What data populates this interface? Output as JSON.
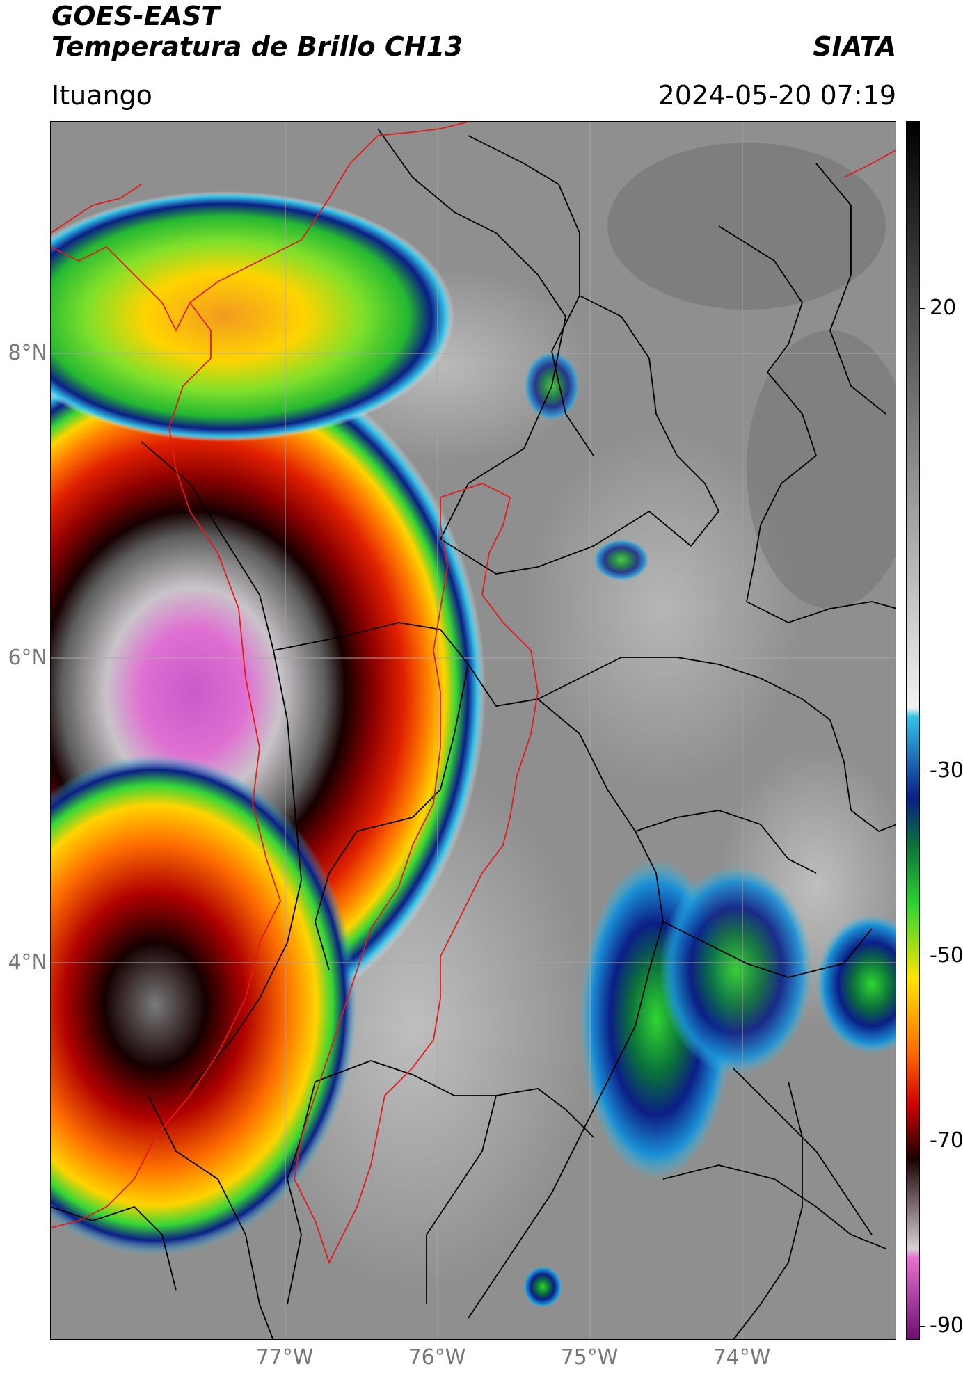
{
  "header": {
    "title_line1": "GOES-EAST",
    "title_line2": "Temperatura de Brillo CH13",
    "brand": "SIATA",
    "location": "Ituango",
    "datetime": "2024-05-20 07:19"
  },
  "map": {
    "lat_labels": [
      "8°N",
      "6°N",
      "4°N"
    ],
    "lon_labels": [
      "77°W",
      "76°W",
      "75°W",
      "74°W"
    ],
    "colors": {
      "land_gray": "#8c8c8c",
      "border_black": "#000000",
      "region_red": "#e21a1a",
      "gridline": "#a0a0a0"
    }
  },
  "colorbar": {
    "tick_labels": [
      "20",
      "-30",
      "-50",
      "-70",
      "-90"
    ],
    "stops": [
      {
        "value": "45",
        "color": "#000000"
      },
      {
        "value": "20",
        "color": "#5a5a5a"
      },
      {
        "value": "-20",
        "color": "#f2f2f2"
      },
      {
        "value": "-21",
        "color": "#33c3e8"
      },
      {
        "value": "-30",
        "color": "#0b1e86"
      },
      {
        "value": "-35",
        "color": "#0a6e3c"
      },
      {
        "value": "-42",
        "color": "#2fd62f"
      },
      {
        "value": "-50",
        "color": "#ffe500"
      },
      {
        "value": "-58",
        "color": "#ff6f00"
      },
      {
        "value": "-64",
        "color": "#d10000"
      },
      {
        "value": "-70",
        "color": "#1a0000"
      },
      {
        "value": "-80",
        "color": "#d8d0d8"
      },
      {
        "value": "-81",
        "color": "#e86fd0"
      },
      {
        "value": "-90",
        "color": "#6a0f70"
      }
    ]
  }
}
